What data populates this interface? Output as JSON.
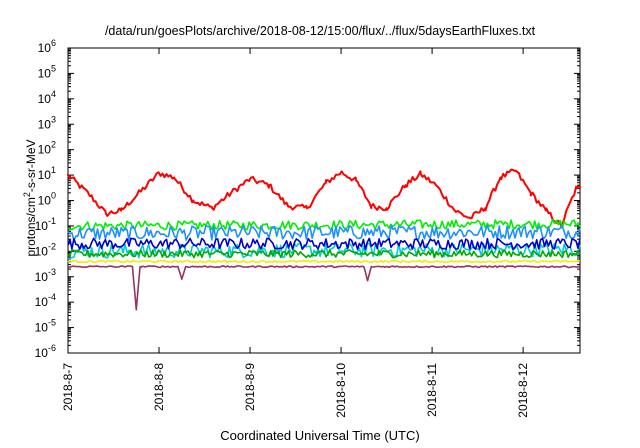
{
  "chart_data": {
    "type": "line",
    "title": "/data/run/goesPlots/archive/2018-08-12/15:00/flux/../flux/5daysEarthFluxes.txt",
    "xlabel": "Coordinated Universal Time (UTC)",
    "ylabel": {
      "pre": "protons/cm",
      "sup": "2",
      "post": "-s-sr-MeV"
    },
    "y_scale": "log",
    "ylim": [
      1e-06,
      1000000.0
    ],
    "y_ticks": [
      {
        "v": -6,
        "base": "10",
        "exp": "-6"
      },
      {
        "v": -5,
        "base": "10",
        "exp": "-5"
      },
      {
        "v": -4,
        "base": "10",
        "exp": "-4"
      },
      {
        "v": -3,
        "base": "10",
        "exp": "-3"
      },
      {
        "v": -2,
        "base": "10",
        "exp": "-2"
      },
      {
        "v": -1,
        "base": "10",
        "exp": "-1"
      },
      {
        "v": 0,
        "base": "10",
        "exp": "0"
      },
      {
        "v": 1,
        "base": "10",
        "exp": "1"
      },
      {
        "v": 2,
        "base": "10",
        "exp": "2"
      },
      {
        "v": 3,
        "base": "10",
        "exp": "3"
      },
      {
        "v": 4,
        "base": "10",
        "exp": "4"
      },
      {
        "v": 5,
        "base": "10",
        "exp": "5"
      },
      {
        "v": 6,
        "base": "10",
        "exp": "6"
      }
    ],
    "xlim": [
      "2018-08-07",
      "2018-08-12T15:00"
    ],
    "x_ticks": [
      {
        "date": "2018-08-07",
        "label": "2018-8-7"
      },
      {
        "date": "2018-08-08",
        "label": "2018-8-8"
      },
      {
        "date": "2018-08-09",
        "label": "2018-8-9"
      },
      {
        "date": "2018-08-10",
        "label": "2018-8-10"
      },
      {
        "date": "2018-08-11",
        "label": "2018-8-11"
      },
      {
        "date": "2018-08-12",
        "label": "2018-8-12"
      }
    ],
    "grid": false,
    "series": [
      {
        "color": "#ff0000",
        "x": [
          "2018-08-07",
          "2018-08-07T06:00",
          "2018-08-07T10:00",
          "2018-08-07T14:00",
          "2018-08-07T20:00",
          "2018-08-08T00:00",
          "2018-08-08T04:00",
          "2018-08-08T09:00",
          "2018-08-08T14:00",
          "2018-08-08T19:00",
          "2018-08-09T00:00",
          "2018-08-09T05:00",
          "2018-08-09T10:00",
          "2018-08-09T15:00",
          "2018-08-09T20:00",
          "2018-08-10T00:00",
          "2018-08-10T04:00",
          "2018-08-10T08:00",
          "2018-08-10T12:00",
          "2018-08-10T17:00",
          "2018-08-10T21:00",
          "2018-08-11T01:00",
          "2018-08-11T06:00",
          "2018-08-11T10:00",
          "2018-08-11T14:00",
          "2018-08-11T18:00",
          "2018-08-11T22:00",
          "2018-08-12T02:00",
          "2018-08-12T06:00",
          "2018-08-12T10:00",
          "2018-08-12T14:00",
          "2018-08-12T15:00"
        ],
        "y": [
          10,
          1.5,
          0.3,
          0.4,
          3,
          12,
          8,
          1,
          0.5,
          2,
          7,
          4,
          0.6,
          0.5,
          5,
          13,
          6,
          0.6,
          0.5,
          4,
          11,
          4,
          0.4,
          0.2,
          0.5,
          8,
          15,
          2,
          0.4,
          0.1,
          3,
          3
        ]
      },
      {
        "color": "#00ee00",
        "x": [
          "2018-08-07",
          "2018-08-12T15:00"
        ],
        "y": [
          0.1,
          0.12
        ]
      },
      {
        "color": "#1e90ff",
        "x": [
          "2018-08-07",
          "2018-08-12T15:00"
        ],
        "y": [
          0.05,
          0.06
        ]
      },
      {
        "color": "#00cccc",
        "x": [
          "2018-08-07",
          "2018-08-12T15:00"
        ],
        "y": [
          0.01,
          0.012
        ]
      },
      {
        "color": "#0000cc",
        "x": [
          "2018-08-07",
          "2018-08-12T15:00"
        ],
        "y": [
          0.02,
          0.02
        ]
      },
      {
        "color": "#00aa00",
        "x": [
          "2018-08-07",
          "2018-08-12T15:00"
        ],
        "y": [
          0.008,
          0.008
        ]
      },
      {
        "color": "#eeee00",
        "x": [
          "2018-08-07",
          "2018-08-12T15:00"
        ],
        "y": [
          0.004,
          0.004
        ]
      },
      {
        "color": "#993366",
        "x": [
          "2018-08-07",
          "2018-08-07T12:00",
          "2018-08-07T17:00",
          "2018-08-07T18:00",
          "2018-08-07T19:00",
          "2018-08-08T05:00",
          "2018-08-08T06:00",
          "2018-08-08T07:00",
          "2018-08-10T06:00",
          "2018-08-10T07:00",
          "2018-08-10T08:00",
          "2018-08-12T15:00"
        ],
        "y": [
          0.0025,
          0.0025,
          0.0025,
          5e-05,
          0.0025,
          0.0025,
          0.0008,
          0.0025,
          0.0025,
          0.0007,
          0.0025,
          0.0025
        ]
      }
    ]
  }
}
